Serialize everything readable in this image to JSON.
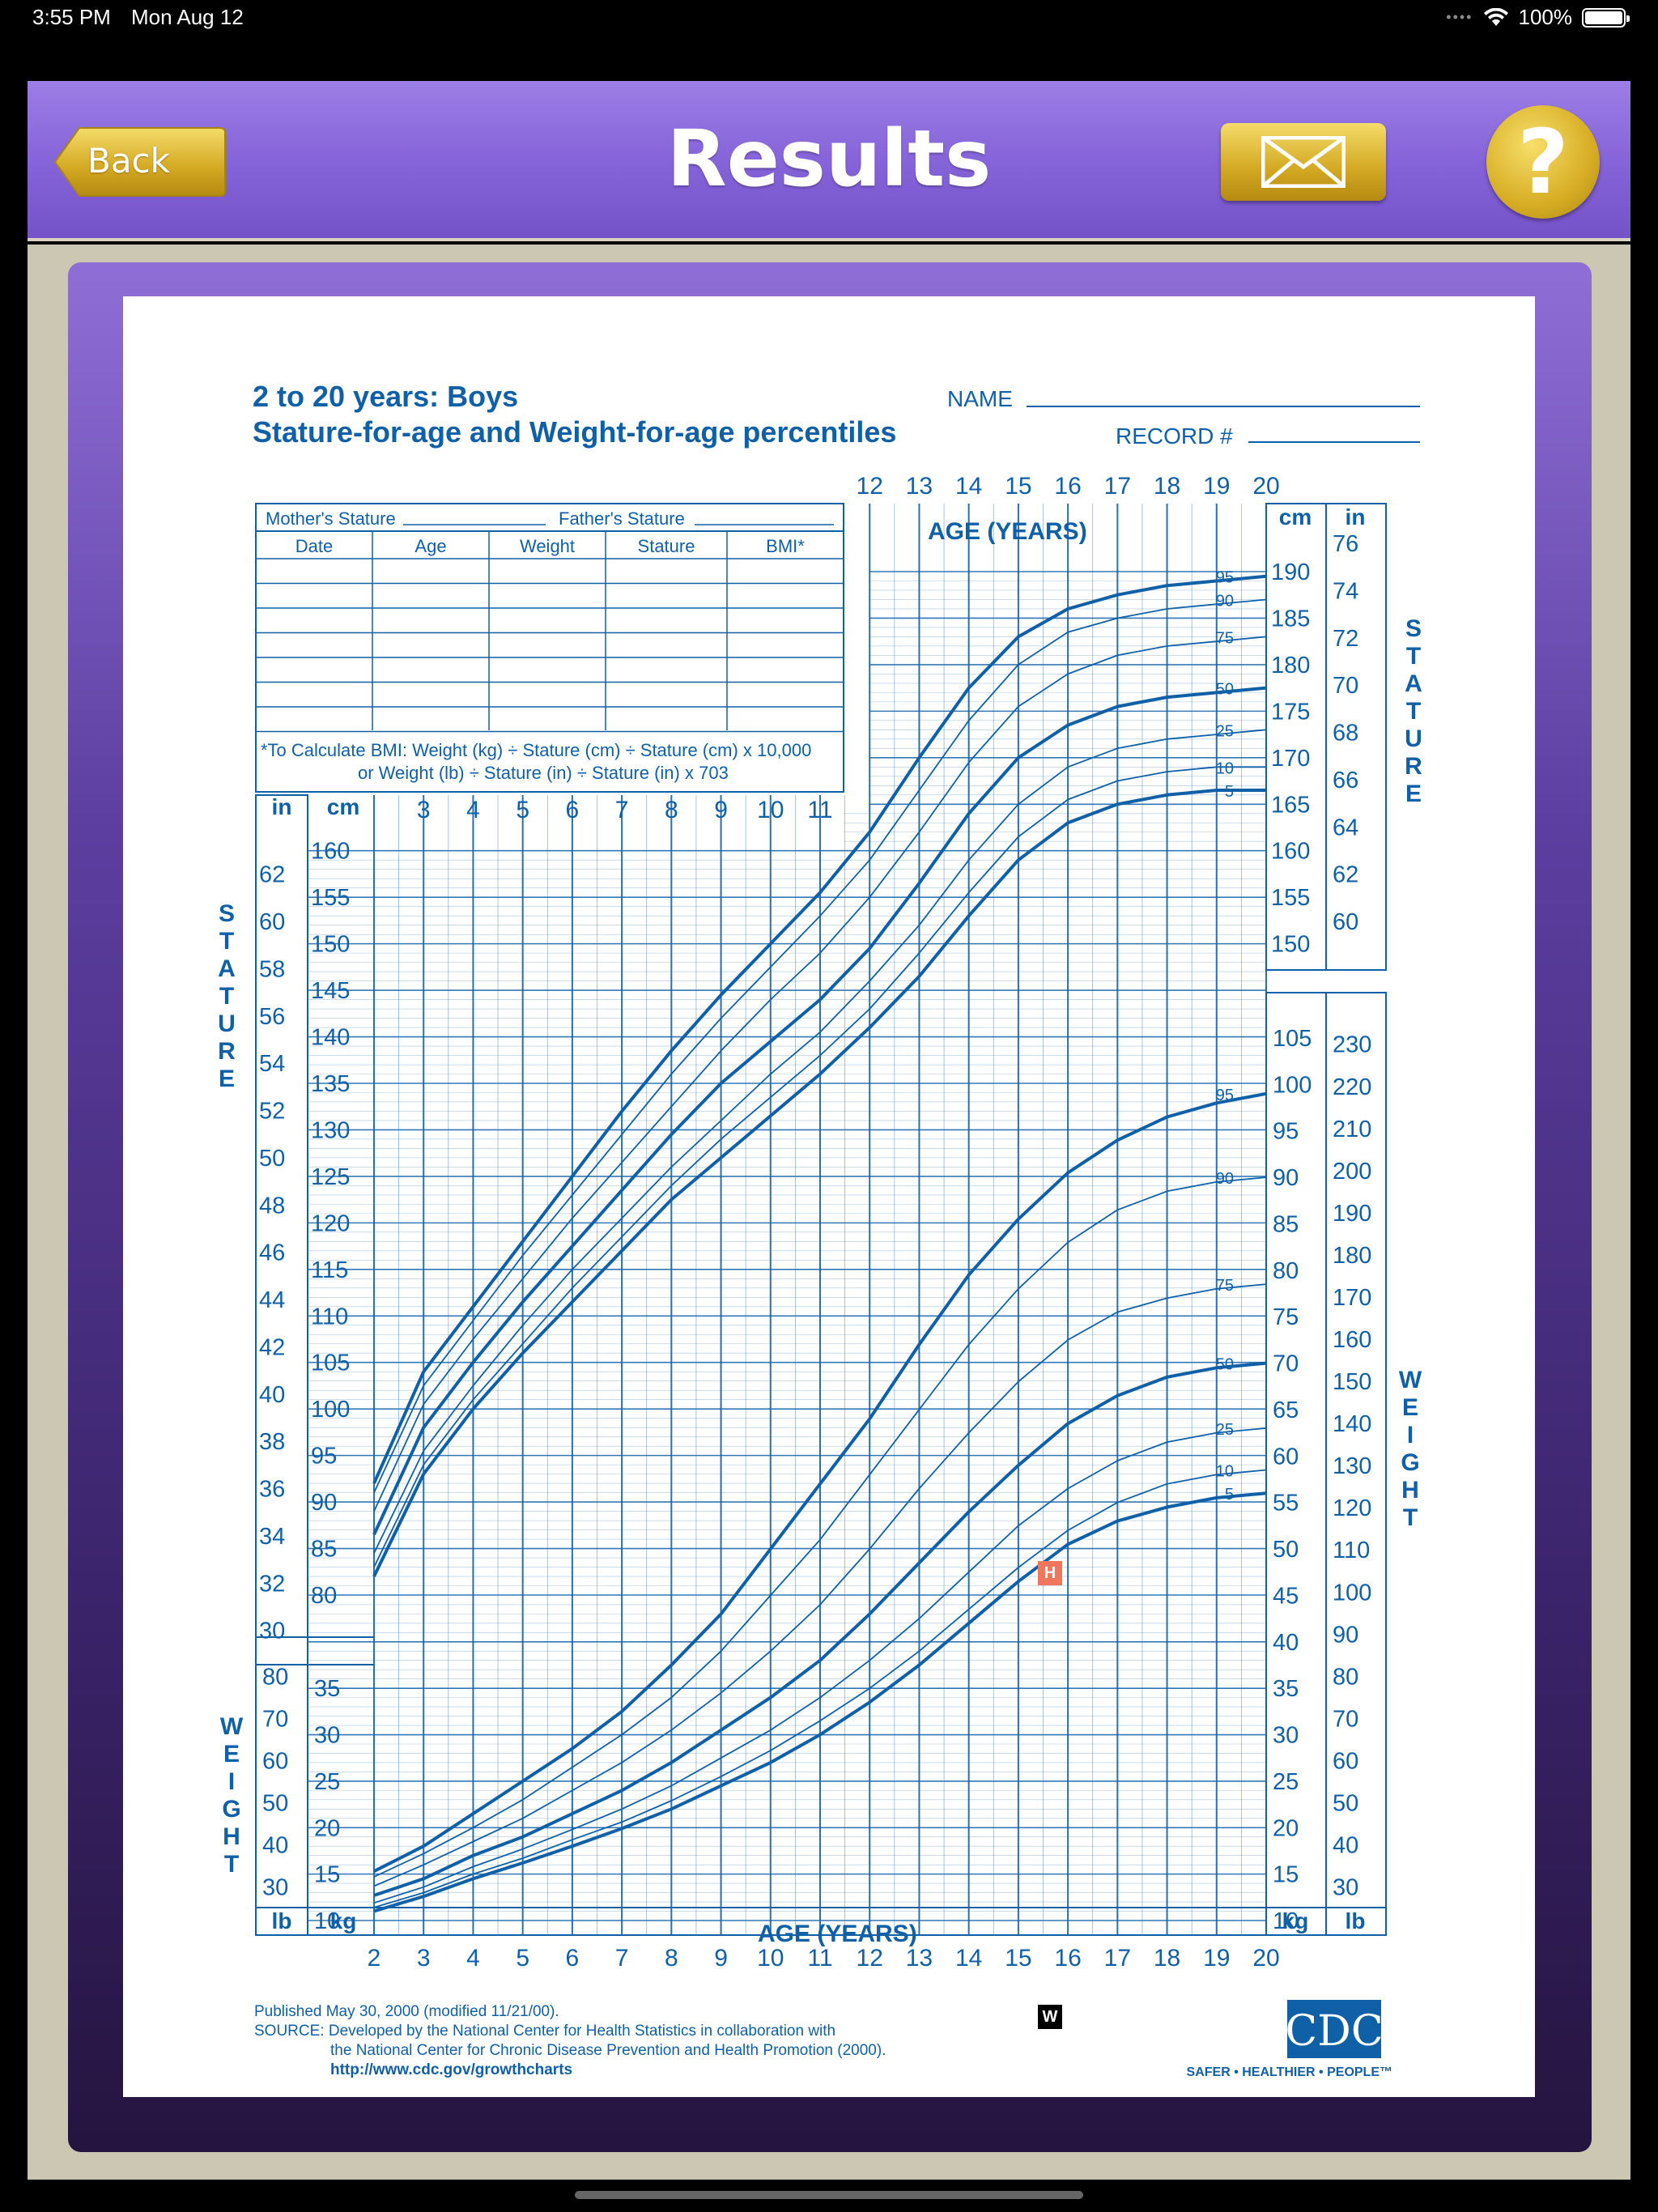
{
  "status_bar": {
    "time": "3:55 PM",
    "date": "Mon Aug 12",
    "battery": "100%"
  },
  "header": {
    "title": "Results",
    "back_label": "Back",
    "mail_icon": "envelope-icon",
    "help_label": "?"
  },
  "chart": {
    "title_line1": "2 to 20 years: Boys",
    "title_line2": "Stature-for-age and Weight-for-age percentiles",
    "name_label": "NAME",
    "record_label": "RECORD #",
    "mothers_stature": "Mother's Stature",
    "fathers_stature": "Father's Stature",
    "table_headers": [
      "Date",
      "Age",
      "Weight",
      "Stature",
      "BMI*"
    ],
    "bmi_note_1": "*To Calculate BMI: Weight (kg) ÷ Stature (cm) ÷ Stature (cm) x 10,000",
    "bmi_note_2": "or Weight (lb) ÷ Stature (in) ÷ Stature (in) x 703",
    "age_axis_label": "AGE (YEARS)",
    "stature_label": "STATURE",
    "weight_label": "WEIGHT",
    "unit_in": "in",
    "unit_cm": "cm",
    "unit_lb": "lb",
    "unit_kg": "kg",
    "footer_published": "Published May 30, 2000 (modified 11/21/00).",
    "footer_source_1": "SOURCE: Developed by the National Center for Health Statistics in collaboration with",
    "footer_source_2": "the National Center for Chronic Disease Prevention and Health Promotion (2000).",
    "footer_url": "http://www.cdc.gov/growthcharts",
    "cdc_logo": "CDC",
    "cdc_tagline": "SAFER • HEALTHIER • PEOPLE™",
    "marker_h": "H",
    "marker_w": "W"
  },
  "chart_data": {
    "type": "line",
    "x_ages_bottom": [
      2,
      3,
      4,
      5,
      6,
      7,
      8,
      9,
      10,
      11,
      12,
      13,
      14,
      15,
      16,
      17,
      18,
      19,
      20
    ],
    "x_ages_top": [
      12,
      13,
      14,
      15,
      16,
      17,
      18,
      19,
      20
    ],
    "x_ages_mid": [
      3,
      4,
      5,
      6,
      7,
      8,
      9,
      10,
      11
    ],
    "stature_cm_ticks": [
      80,
      85,
      90,
      95,
      100,
      105,
      110,
      115,
      120,
      125,
      130,
      135,
      140,
      145,
      150,
      155,
      160,
      165,
      170,
      175,
      180,
      185,
      190
    ],
    "stature_in_ticks_left": [
      30,
      32,
      34,
      36,
      38,
      40,
      42,
      44,
      46,
      48,
      50,
      52,
      54,
      56,
      58,
      60,
      62
    ],
    "stature_in_ticks_right": [
      60,
      62,
      64,
      66,
      68,
      70,
      72,
      74,
      76
    ],
    "weight_kg_ticks": [
      10,
      15,
      20,
      25,
      30,
      35,
      40,
      45,
      50,
      55,
      60,
      65,
      70,
      75,
      80,
      85,
      90,
      95,
      100,
      105
    ],
    "weight_lb_ticks_left": [
      30,
      40,
      50,
      60,
      70,
      80
    ],
    "weight_lb_ticks_right": [
      30,
      40,
      50,
      60,
      70,
      80,
      90,
      100,
      110,
      120,
      130,
      140,
      150,
      160,
      170,
      180,
      190,
      200,
      210,
      220,
      230
    ],
    "stature_series": [
      {
        "name": "95",
        "values": [
          92,
          104,
          111,
          118,
          125,
          132,
          138.5,
          144.5,
          150,
          155.5,
          162,
          170,
          177.5,
          183,
          186,
          187.5,
          188.5,
          189,
          189.5
        ]
      },
      {
        "name": "90",
        "values": [
          91,
          102.5,
          109.5,
          116.5,
          123,
          129.5,
          136,
          142,
          147.5,
          153,
          159,
          166.5,
          174,
          180,
          183.5,
          185,
          186,
          186.5,
          187
        ]
      },
      {
        "name": "75",
        "values": [
          89,
          100.5,
          107.5,
          114,
          120.5,
          126.5,
          132.5,
          138.5,
          144,
          149,
          155,
          162,
          169.5,
          175.5,
          179,
          181,
          182,
          182.5,
          183
        ]
      },
      {
        "name": "50",
        "values": [
          86.5,
          98,
          105,
          111.5,
          117.5,
          123.5,
          129.5,
          135,
          139.5,
          144,
          149.5,
          156.5,
          164,
          170,
          173.5,
          175.5,
          176.5,
          177,
          177.5
        ]
      },
      {
        "name": "25",
        "values": [
          84.5,
          95.5,
          102.5,
          109,
          115,
          120.5,
          126,
          131,
          136,
          140.5,
          146,
          152,
          159,
          165,
          169,
          171,
          172,
          172.5,
          173
        ]
      },
      {
        "name": "10",
        "values": [
          83,
          94,
          101,
          107,
          113,
          118.5,
          124,
          129,
          133.5,
          138,
          143,
          149,
          155.5,
          161.5,
          165.5,
          167.5,
          168.5,
          169,
          169
        ]
      },
      {
        "name": "5",
        "values": [
          82,
          93,
          100,
          106,
          111.5,
          117,
          122.5,
          127,
          131.5,
          136,
          141,
          146.5,
          153,
          159,
          163,
          165,
          166,
          166.5,
          166.5
        ]
      }
    ],
    "weight_series": [
      {
        "name": "95",
        "values": [
          15.3,
          18,
          21.5,
          25,
          28.5,
          32.5,
          37.5,
          43,
          50,
          57,
          64,
          72,
          79.5,
          85.5,
          90.5,
          94,
          96.5,
          98,
          99
        ]
      },
      {
        "name": "90",
        "values": [
          14.7,
          17.2,
          20,
          23,
          26.5,
          30,
          34,
          39,
          45,
          51,
          58,
          65,
          72,
          78,
          83,
          86.5,
          88.5,
          89.5,
          90
        ]
      },
      {
        "name": "75",
        "values": [
          13.7,
          16,
          18.5,
          21,
          24,
          27,
          30.5,
          34.5,
          39,
          44,
          50,
          56.5,
          62.5,
          68,
          72.5,
          75.5,
          77,
          78,
          78.5
        ]
      },
      {
        "name": "50",
        "values": [
          12.7,
          14.5,
          17,
          19,
          21.5,
          24,
          27,
          30.5,
          34,
          38,
          43,
          48.5,
          54,
          59,
          63.5,
          66.5,
          68.5,
          69.5,
          70
        ]
      },
      {
        "name": "25",
        "values": [
          11.9,
          13.6,
          15.8,
          17.7,
          19.8,
          22,
          24.5,
          27.5,
          30.5,
          34,
          38,
          42.5,
          47.5,
          52.5,
          56.5,
          59.5,
          61.5,
          62.5,
          63
        ]
      },
      {
        "name": "10",
        "values": [
          11.4,
          13,
          15,
          16.7,
          18.7,
          20.6,
          22.9,
          25.5,
          28.3,
          31.5,
          35,
          39,
          43.5,
          48,
          52,
          55,
          57,
          58,
          58.5
        ]
      },
      {
        "name": "5",
        "values": [
          11,
          12.6,
          14.5,
          16.2,
          18,
          19.9,
          22,
          24.5,
          27,
          30,
          33.5,
          37.5,
          42,
          46.5,
          50.5,
          53,
          54.5,
          55.5,
          56
        ]
      }
    ]
  }
}
